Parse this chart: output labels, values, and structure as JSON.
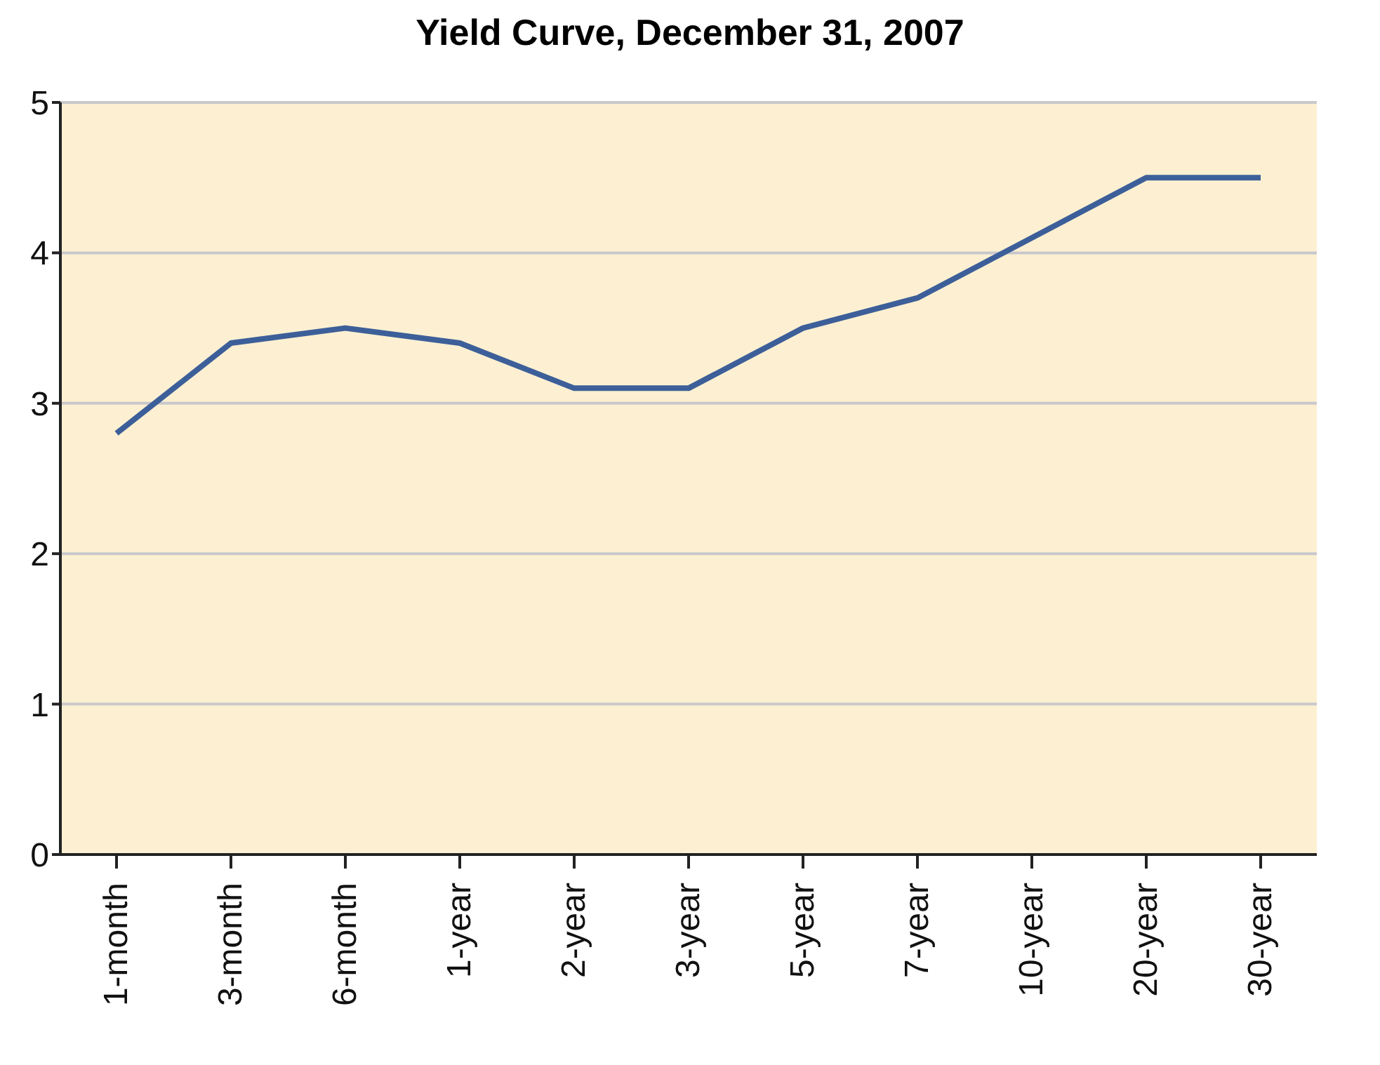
{
  "chart_data": {
    "type": "line",
    "title": "Yield Curve, December 31, 2007",
    "categories": [
      "1-month",
      "3-month",
      "6-month",
      "1-year",
      "2-year",
      "3-year",
      "5-year",
      "7-year",
      "10-year",
      "20-year",
      "30-year"
    ],
    "series": [
      {
        "color": "#3d5f99",
        "values": [
          2.8,
          3.4,
          3.5,
          3.4,
          3.1,
          3.1,
          3.5,
          3.7,
          4.1,
          4.5,
          4.5
        ]
      }
    ],
    "ylim": [
      0,
      5
    ],
    "yticks": [
      0,
      1,
      2,
      3,
      4,
      5
    ],
    "grid": "y",
    "legend": false,
    "marker": "none",
    "line_style": "solid"
  }
}
